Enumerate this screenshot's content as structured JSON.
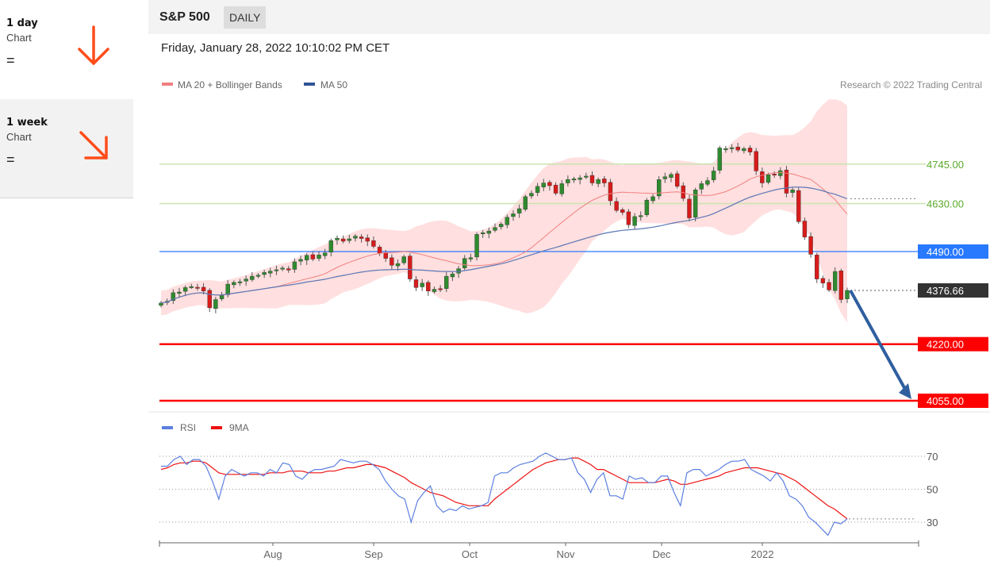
{
  "sidebar": {
    "items": [
      {
        "title": "1 day",
        "sub": "Chart",
        "status": "=",
        "trend": "down",
        "arrow_color": "#ff4d1a"
      },
      {
        "title": "1 week",
        "sub": "Chart",
        "status": "=",
        "trend": "down-right",
        "arrow_color": "#ff4d1a"
      }
    ]
  },
  "header": {
    "symbol": "S&P 500",
    "period": "DAILY",
    "datetime": "Friday, January 28, 2022 10:10:02 PM CET"
  },
  "chart_data": {
    "type": "line",
    "title": "",
    "legend": [
      "MA 20 + Bollinger Bands",
      "MA 50"
    ],
    "legend_colors": [
      "#f08080",
      "#2f5597"
    ],
    "legend_placement": "top-left",
    "copyright": "Research © 2022 Trading Central",
    "x_ticks": [
      "Aug",
      "Sep",
      "Oct",
      "Nov",
      "Dec",
      "2022"
    ],
    "ylim": [
      3960,
      4860
    ],
    "current_price": {
      "value": 4376.66,
      "label": "4376.66"
    },
    "levels": [
      {
        "value": 4745,
        "label": "4745.00",
        "kind": "resistance-minor",
        "color": "#4caf50"
      },
      {
        "value": 4630,
        "label": "4630.00",
        "kind": "resistance-minor",
        "color": "#4caf50"
      },
      {
        "value": 4490,
        "label": "4490.00",
        "kind": "pivot",
        "color": "#2979ff"
      },
      {
        "value": 4220,
        "label": "4220.00",
        "kind": "support",
        "color": "#ff0000"
      },
      {
        "value": 4055,
        "label": "4055.00",
        "kind": "support",
        "color": "#ff0000"
      }
    ],
    "target": {
      "from": 4376.66,
      "to": 4055
    },
    "price_close_series": [
      4340,
      4345,
      4370,
      4372,
      4385,
      4388,
      4384,
      4375,
      4326,
      4350,
      4362,
      4395,
      4400,
      4402,
      4410,
      4418,
      4421,
      4429,
      4433,
      4437,
      4442,
      4436,
      4460,
      4467,
      4479,
      4468,
      4480,
      4486,
      4522,
      4529,
      4520,
      4527,
      4535,
      4528,
      4520,
      4505,
      4485,
      4470,
      4450,
      4455,
      4475,
      4410,
      4385,
      4398,
      4375,
      4380,
      4380,
      4418,
      4425,
      4440,
      4470,
      4472,
      4540,
      4545,
      4550,
      4560,
      4570,
      4590,
      4600,
      4615,
      4650,
      4660,
      4680,
      4690,
      4682,
      4660,
      4688,
      4700,
      4702,
      4705,
      4710,
      4690,
      4700,
      4690,
      4638,
      4610,
      4604,
      4568,
      4592,
      4595,
      4640,
      4650,
      4700,
      4708,
      4715,
      4680,
      4645,
      4588,
      4670,
      4688,
      4697,
      4725,
      4792,
      4790,
      4793,
      4786,
      4790,
      4780,
      4725,
      4690,
      4714,
      4713,
      4726,
      4660,
      4670,
      4577,
      4532,
      4482,
      4410,
      4398,
      4378,
      4432,
      4350,
      4376.66
    ],
    "rsi": {
      "legend": [
        "RSI",
        "9MA"
      ],
      "colors": [
        "#5b7fe0",
        "#ee1111"
      ],
      "y_ticks": [
        70,
        50,
        30
      ],
      "ylim": [
        18,
        82
      ],
      "rsi_series": [
        64,
        64,
        68,
        70,
        65,
        68,
        68,
        64,
        55,
        44,
        58,
        62,
        60,
        58,
        60,
        60,
        58,
        62,
        60,
        66,
        65,
        58,
        56,
        60,
        62,
        62,
        63,
        64,
        68,
        67,
        66,
        67,
        67,
        65,
        62,
        55,
        50,
        46,
        44,
        30,
        43,
        48,
        52,
        40,
        36,
        38,
        37,
        40,
        38,
        39,
        40,
        42,
        58,
        60,
        60,
        63,
        65,
        66,
        67,
        70,
        72,
        70,
        68,
        68,
        69,
        60,
        56,
        48,
        56,
        60,
        46,
        46,
        44,
        58,
        56,
        57,
        54,
        54,
        58,
        58,
        48,
        40,
        60,
        62,
        62,
        58,
        60,
        62,
        65,
        67,
        67,
        68,
        62,
        60,
        58,
        55,
        60,
        55,
        46,
        44,
        40,
        33,
        30,
        26,
        22,
        30,
        29,
        32
      ],
      "ma_series": [
        62,
        63,
        65,
        66,
        66,
        67,
        67,
        66,
        63,
        60,
        59,
        59,
        59,
        59,
        59,
        59,
        59,
        60,
        60,
        60,
        61,
        61,
        61,
        60,
        60,
        60,
        61,
        61,
        62,
        63,
        63,
        64,
        65,
        65,
        64,
        63,
        61,
        59,
        57,
        54,
        52,
        50,
        48,
        47,
        46,
        44,
        42,
        41,
        40,
        40,
        40,
        40,
        44,
        47,
        50,
        53,
        56,
        59,
        62,
        64,
        66,
        67,
        68,
        68,
        69,
        69,
        67,
        65,
        62,
        62,
        60,
        58,
        56,
        54,
        54,
        54,
        54,
        54,
        55,
        56,
        55,
        53,
        53,
        54,
        55,
        56,
        57,
        58,
        60,
        61,
        62,
        63,
        63,
        63,
        62,
        61,
        60,
        59,
        57,
        55,
        52,
        49,
        46,
        43,
        40,
        38,
        35,
        32
      ]
    }
  }
}
